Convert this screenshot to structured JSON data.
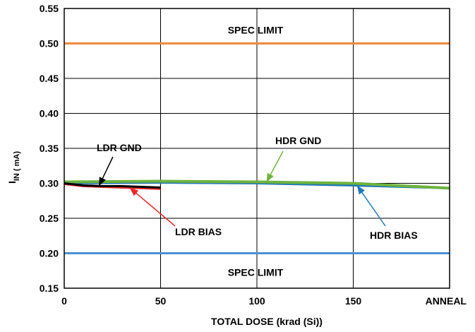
{
  "chart_data": {
    "type": "line",
    "xlabel": "TOTAL DOSE (krad (Si))",
    "ylabel_main": "I",
    "ylabel_sub": "IN ( mA)",
    "x_ticks": [
      "0",
      "50",
      "100",
      "150",
      "ANNEAL"
    ],
    "x_tick_values": [
      0,
      50,
      100,
      150,
      200
    ],
    "y_ticks": [
      "0.15",
      "0.20",
      "0.25",
      "0.30",
      "0.35",
      "0.40",
      "0.45",
      "0.50",
      "0.55"
    ],
    "xlim": [
      0,
      200
    ],
    "ylim": [
      0.15,
      0.55
    ],
    "grid": "major",
    "spec_limits": [
      {
        "label": "SPEC LIMIT",
        "value": 0.5,
        "color": "#F0883C"
      },
      {
        "label": "SPEC LIMIT",
        "value": 0.2,
        "color": "#4A90D2"
      }
    ],
    "series": [
      {
        "name": "LDR GND",
        "color": "#000000",
        "x": [
          0,
          10,
          20,
          30,
          40,
          50
        ],
        "y": [
          0.3,
          0.297,
          0.296,
          0.296,
          0.295,
          0.294
        ]
      },
      {
        "name": "LDR BIAS",
        "color": "#E8282B",
        "x": [
          0,
          10,
          20,
          30,
          40,
          50
        ],
        "y": [
          0.299,
          0.296,
          0.295,
          0.294,
          0.293,
          0.292
        ]
      },
      {
        "name": "HDR GND",
        "color": "#6DB33F",
        "x": [
          0,
          50,
          100,
          150,
          200
        ],
        "y": [
          0.302,
          0.303,
          0.302,
          0.3,
          0.293
        ]
      },
      {
        "name": "HDR BIAS",
        "color": "#1F77B4",
        "x": [
          0,
          50,
          100,
          150,
          200
        ],
        "y": [
          0.3,
          0.301,
          0.3,
          0.297,
          0.293
        ]
      }
    ],
    "annotations": [
      {
        "text": "LDR GND",
        "series": "LDR GND"
      },
      {
        "text": "LDR BIAS",
        "series": "LDR BIAS"
      },
      {
        "text": "HDR GND",
        "series": "HDR GND"
      },
      {
        "text": "HDR BIAS",
        "series": "HDR BIAS"
      }
    ]
  }
}
